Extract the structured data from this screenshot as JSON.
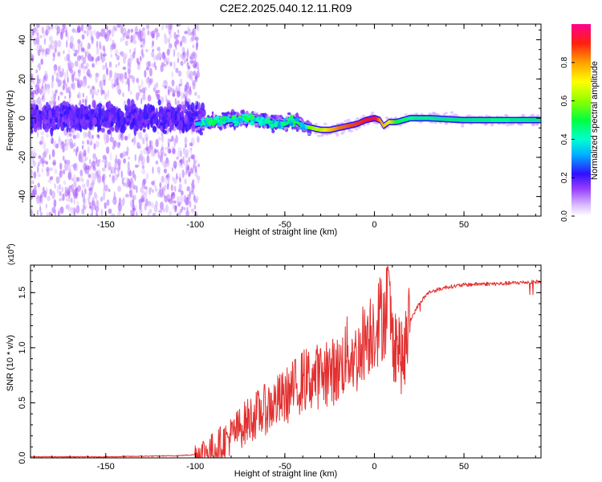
{
  "title": "C2E2.2025.040.12.11.R09",
  "chart_data": [
    {
      "type": "heatmap",
      "title": "C2E2.2025.040.12.11.R09",
      "xlabel": "Height of straight line (km)",
      "ylabel": "Frequency (Hz)",
      "xlim": [
        -192,
        93
      ],
      "ylim": [
        -50,
        48
      ],
      "xticks": [
        -150,
        -100,
        -50,
        0,
        50
      ],
      "yticks": [
        -40,
        -20,
        0,
        20,
        40
      ],
      "colorbar": {
        "label": "Normalized spectral amplitude",
        "range": [
          0.0,
          1.0
        ],
        "ticks": [
          0.0,
          0.2,
          0.4,
          0.6,
          0.8
        ]
      },
      "ridge": {
        "x": [
          -100,
          -90,
          -80,
          -70,
          -60,
          -50,
          -45,
          -40,
          -35,
          -30,
          -25,
          -20,
          -15,
          -10,
          -5,
          0,
          3,
          5,
          8,
          12,
          20,
          30,
          50,
          70,
          93
        ],
        "frequency": [
          -3,
          -2,
          -1,
          0,
          -2,
          -3,
          -1,
          -4,
          -5,
          -6,
          -6,
          -5,
          -4,
          -3,
          -1,
          0,
          -1,
          -4,
          -2,
          -2,
          0,
          0,
          -1,
          -1,
          -1
        ],
        "amplitude": [
          0.35,
          0.4,
          0.45,
          0.4,
          0.42,
          0.45,
          0.5,
          0.55,
          0.6,
          0.65,
          0.75,
          0.82,
          0.85,
          0.88,
          0.9,
          0.95,
          0.8,
          0.75,
          0.7,
          0.5,
          0.45,
          0.45,
          0.45,
          0.45,
          0.45
        ]
      }
    },
    {
      "type": "line",
      "xlabel": "Height of straight line (km)",
      "ylabel": "SNR (10 * v/v)",
      "y_multiplier": "(x10",
      "y_multiplier_exp": "4",
      "y_multiplier_close": ")",
      "xlim": [
        -192,
        93
      ],
      "ylim": [
        0,
        1.75
      ],
      "xticks": [
        -150,
        -100,
        -50,
        0,
        50
      ],
      "yticks": [
        0.0,
        0.5,
        1.0,
        1.5
      ],
      "yticklabels": [
        "0.0",
        "0.5",
        "1.0",
        "1.5"
      ],
      "series": [
        {
          "name": "SNR",
          "color": "#e33030",
          "x": [
            -192,
            -150,
            -110,
            -100,
            -90,
            -80,
            -70,
            -60,
            -50,
            -40,
            -30,
            -20,
            -15,
            -10,
            -5,
            0,
            5,
            8,
            10,
            13,
            16,
            20,
            25,
            30,
            40,
            50,
            60,
            70,
            80,
            93
          ],
          "y": [
            0.01,
            0.01,
            0.02,
            0.03,
            0.08,
            0.2,
            0.35,
            0.45,
            0.55,
            0.7,
            0.75,
            0.8,
            0.95,
            0.9,
            1.1,
            1.2,
            1.3,
            1.45,
            1.05,
            1.05,
            0.85,
            1.25,
            1.4,
            1.5,
            1.55,
            1.57,
            1.58,
            1.58,
            1.59,
            1.6
          ]
        }
      ]
    }
  ],
  "colors": {
    "snr_line": "#e33030",
    "heatmap_scatter": "#7a1fff",
    "heatmap_haze": "#c9a8ff"
  }
}
